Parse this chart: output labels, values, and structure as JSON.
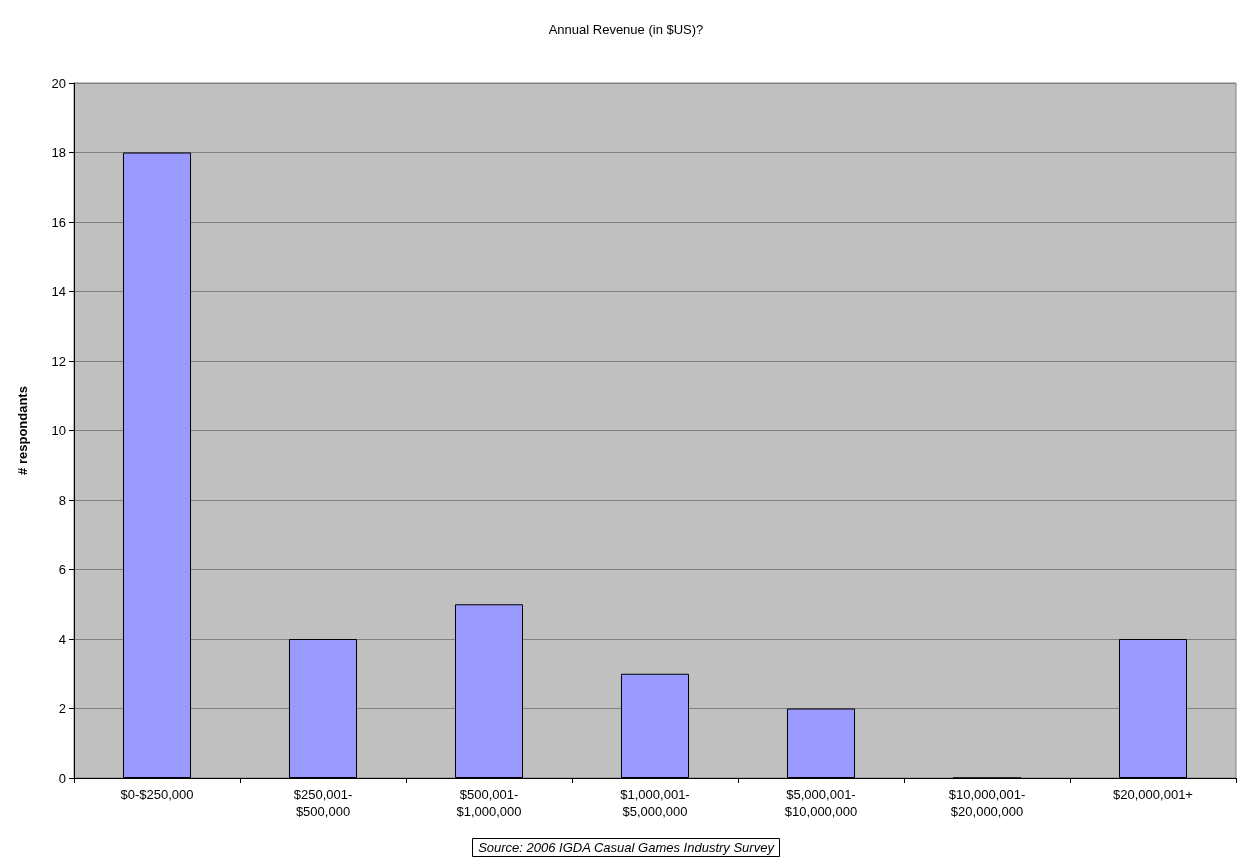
{
  "chart_data": {
    "type": "bar",
    "title": "Annual Revenue (in $US)?",
    "ylabel": "# respondants",
    "categories": [
      "$0-$250,000",
      "$250,001-\n$500,000",
      "$500,001-\n$1,000,000",
      "$1,000,001-\n$5,000,000",
      "$5,000,001-\n$10,000,000",
      "$10,000,001-\n$20,000,000",
      "$20,000,001+"
    ],
    "values": [
      18,
      4,
      5,
      3,
      2,
      0,
      4
    ],
    "color": "#9999ff",
    "ylim": [
      0,
      20
    ],
    "yticks": [
      0,
      2,
      4,
      6,
      8,
      10,
      12,
      14,
      16,
      18,
      20
    ],
    "grid": "y",
    "annotations": [
      "Source: 2006 IGDA Casual Games Industry Survey"
    ]
  }
}
